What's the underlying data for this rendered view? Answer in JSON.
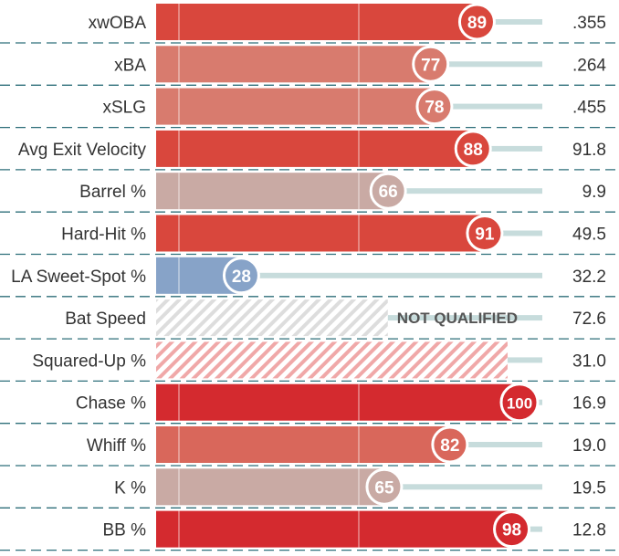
{
  "chart_data": {
    "type": "bar",
    "xlim": [
      0,
      100
    ],
    "not_qualified_label": "NOT QUALIFIED",
    "rows": [
      {
        "metric": "xwOBA",
        "percentile": 89,
        "value": ".355",
        "color": "#d9473d"
      },
      {
        "metric": "xBA",
        "percentile": 77,
        "value": ".264",
        "color": "#d87b6e"
      },
      {
        "metric": "xSLG",
        "percentile": 78,
        "value": ".455",
        "color": "#d87b6e"
      },
      {
        "metric": "Avg Exit Velocity",
        "percentile": 88,
        "value": "91.8",
        "color": "#d9473d"
      },
      {
        "metric": "Barrel %",
        "percentile": 66,
        "value": "9.9",
        "color": "#c9aaa4"
      },
      {
        "metric": "Hard-Hit %",
        "percentile": 91,
        "value": "49.5",
        "color": "#d9473d"
      },
      {
        "metric": "LA Sweet-Spot %",
        "percentile": 28,
        "value": "32.2",
        "color": "#87a3c8"
      },
      {
        "metric": "Bat Speed",
        "percentile": null,
        "value": "72.6",
        "qualified": false,
        "color": "#dddddd",
        "extent": 0.6
      },
      {
        "metric": "Squared-Up %",
        "percentile": null,
        "value": "31.0",
        "qualified": false,
        "color": "#f0a8a8",
        "extent": 0.91
      },
      {
        "metric": "Chase %",
        "percentile": 100,
        "value": "16.9",
        "color": "#d42a2f"
      },
      {
        "metric": "Whiff %",
        "percentile": 82,
        "value": "19.0",
        "color": "#d9675b"
      },
      {
        "metric": "K %",
        "percentile": 65,
        "value": "19.5",
        "color": "#c9aaa4"
      },
      {
        "metric": "BB %",
        "percentile": 98,
        "value": "12.8",
        "color": "#d42a2f"
      }
    ]
  }
}
